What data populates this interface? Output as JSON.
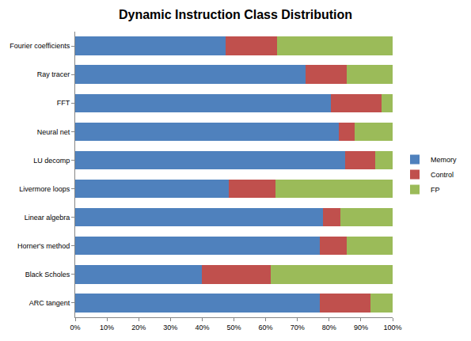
{
  "chart_data": {
    "type": "bar",
    "title": "Dynamic Instruction Class Distribution",
    "orientation": "horizontal",
    "stacked": true,
    "grid": false,
    "legend": "right",
    "categories": [
      "Fourier coefficients",
      "Ray tracer",
      "FFT",
      "Neural net",
      "LU decomp",
      "Livermore loops",
      "Linear algebra",
      "Horner's method",
      "Black Scholes",
      "ARC tangent"
    ],
    "series": [
      {
        "name": "Memory",
        "color": "#4f81bd",
        "values": [
          47.5,
          72.5,
          80.5,
          83,
          85,
          48.5,
          78,
          77,
          40,
          77
        ]
      },
      {
        "name": "Control",
        "color": "#c0504d",
        "values": [
          16,
          13,
          16,
          5,
          9.5,
          14.5,
          5.5,
          8.5,
          21.5,
          16
        ]
      },
      {
        "name": "FP",
        "color": "#9bbb59",
        "values": [
          36.5,
          14.5,
          3.5,
          12,
          5.5,
          37,
          16.5,
          14.5,
          38.5,
          7
        ]
      }
    ],
    "xlim": [
      0,
      100
    ],
    "xticks": [
      {
        "value": 0,
        "label": "0%"
      },
      {
        "value": 10,
        "label": "10%"
      },
      {
        "value": 20,
        "label": "20%"
      },
      {
        "value": 30,
        "label": "30%"
      },
      {
        "value": 40,
        "label": "40%"
      },
      {
        "value": 50,
        "label": "50%"
      },
      {
        "value": 60,
        "label": "60%"
      },
      {
        "value": 70,
        "label": "70%"
      },
      {
        "value": 80,
        "label": "80%"
      },
      {
        "value": 90,
        "label": "90%"
      },
      {
        "value": 100,
        "label": "100%"
      }
    ]
  }
}
